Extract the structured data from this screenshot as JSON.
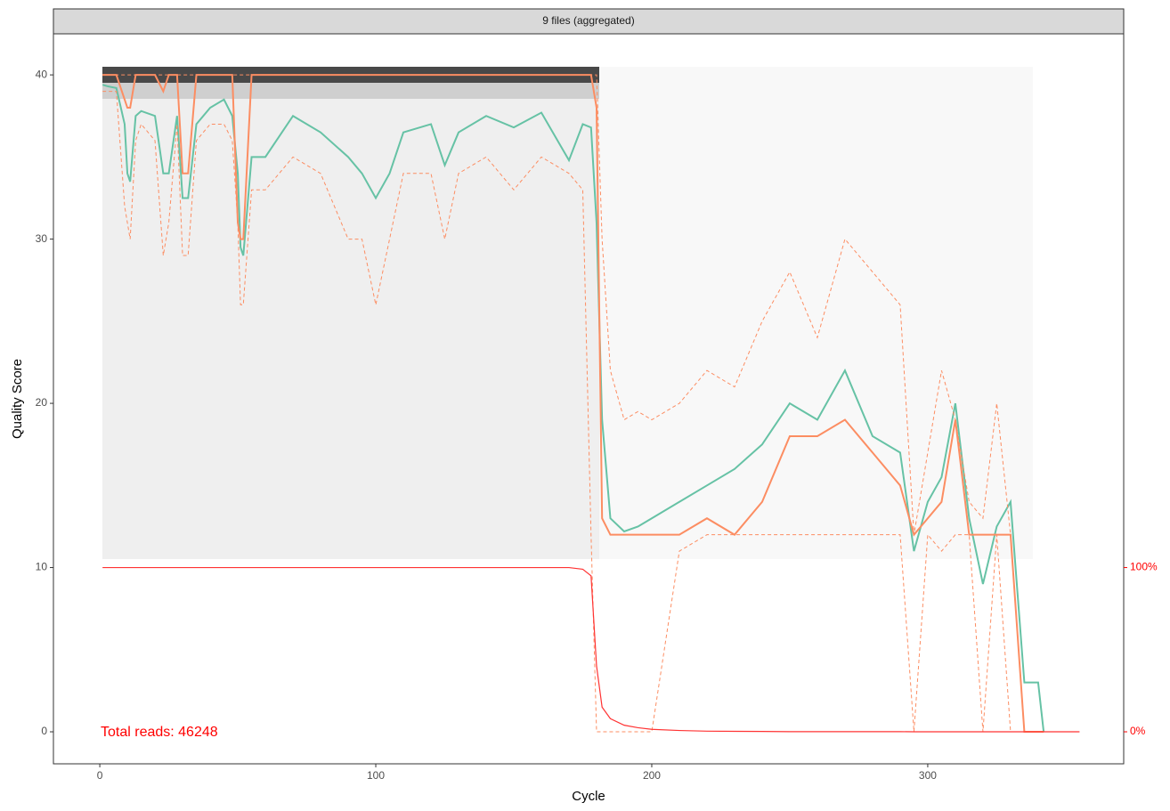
{
  "chart_data": {
    "type": "line",
    "strip": "9 files (aggregated)",
    "xlabel": "Cycle",
    "ylabel": "Quality Score",
    "annotation": "Total reads: 46248",
    "x": [
      1,
      3,
      6,
      9,
      10,
      11,
      13,
      15,
      20,
      23,
      25,
      28,
      30,
      32,
      35,
      40,
      45,
      48,
      50,
      51,
      52,
      55,
      60,
      70,
      80,
      90,
      95,
      100,
      105,
      110,
      120,
      125,
      130,
      140,
      150,
      160,
      170,
      175,
      178,
      180,
      182,
      185,
      190,
      195,
      200,
      210,
      220,
      230,
      240,
      250,
      260,
      270,
      280,
      290,
      295,
      300,
      305,
      310,
      315,
      320,
      325,
      330,
      335,
      340,
      342,
      355
    ],
    "series": [
      {
        "color": "#66c2a5",
        "dash": false,
        "values": [
          39.4,
          39.3,
          39.2,
          37,
          34,
          33.5,
          37.5,
          37.8,
          37.5,
          34,
          34,
          37.5,
          32.5,
          32.5,
          37,
          38,
          38.5,
          37.5,
          34,
          29.5,
          29,
          35,
          35,
          37.5,
          36.5,
          35,
          34,
          32.5,
          34,
          36.5,
          37,
          34.5,
          36.5,
          37.5,
          36.8,
          37.7,
          34.8,
          37,
          36.8,
          31,
          19,
          13,
          12.2,
          12.5,
          13,
          14,
          15,
          16,
          17.5,
          20,
          19,
          22,
          18,
          17,
          11,
          14,
          15.5,
          20,
          13,
          9,
          12.5,
          14,
          3,
          3,
          0,
          null
        ]
      },
      {
        "color": "#fc8d62",
        "dash": false,
        "values": [
          40,
          40,
          40,
          38.5,
          38,
          38,
          40,
          40,
          40,
          39,
          40,
          40,
          34,
          34,
          40,
          40,
          40,
          40,
          31,
          30,
          30,
          40,
          40,
          40,
          40,
          40,
          40,
          40,
          40,
          40,
          40,
          40,
          40,
          40,
          40,
          40,
          40,
          40,
          40,
          38,
          13,
          12,
          12,
          12,
          12,
          12,
          13,
          12,
          14,
          18,
          18,
          19,
          17,
          15,
          12,
          13,
          14,
          19,
          12,
          12,
          12,
          12,
          0,
          0,
          0,
          null
        ]
      },
      {
        "color": "#fc8d62",
        "dash": true,
        "values": [
          39,
          39,
          39,
          32,
          31,
          30,
          36,
          37,
          36,
          29,
          31,
          37,
          29,
          29,
          36,
          37,
          37,
          36,
          31,
          26,
          26,
          33,
          33,
          35,
          34,
          30,
          30,
          26,
          30,
          34,
          34,
          30,
          34,
          35,
          33,
          35,
          34,
          33,
          12,
          0,
          0,
          0,
          0,
          0,
          0,
          11,
          12,
          12,
          12,
          12,
          12,
          12,
          12,
          12,
          0,
          12,
          11,
          12,
          12,
          0,
          12,
          0,
          0,
          0,
          0,
          null
        ]
      },
      {
        "color": "#fc8d62",
        "dash": true,
        "values": [
          40,
          40,
          40,
          40,
          40,
          40,
          40,
          40,
          40,
          40,
          40,
          40,
          40,
          40,
          40,
          40,
          40,
          40,
          40,
          40,
          40,
          40,
          40,
          40,
          40,
          40,
          40,
          40,
          40,
          40,
          40,
          40,
          40,
          40,
          40,
          40,
          40,
          40,
          40,
          40,
          30,
          22,
          19,
          19.5,
          19,
          20,
          22,
          21,
          25,
          28,
          24,
          30,
          28,
          26,
          12,
          17,
          22,
          19,
          14,
          13,
          20,
          12,
          0,
          0,
          0,
          null
        ]
      },
      {
        "color": "#ff3333",
        "dash": false,
        "axis": "y2",
        "values": [
          100,
          100,
          100,
          100,
          100,
          100,
          100,
          100,
          100,
          100,
          100,
          100,
          100,
          100,
          100,
          100,
          100,
          100,
          100,
          100,
          100,
          100,
          100,
          100,
          100,
          100,
          100,
          100,
          100,
          100,
          100,
          100,
          100,
          100,
          100,
          100,
          100,
          99,
          95,
          40,
          15,
          8,
          4,
          2.5,
          1.5,
          0.8,
          0.4,
          0.3,
          0.2,
          0.1,
          0.1,
          0.1,
          0.1,
          0.1,
          0,
          0,
          0,
          0,
          0,
          0,
          0,
          0,
          0,
          0,
          0,
          0
        ]
      }
    ],
    "xlim": [
      -16.8,
      371
    ],
    "xticks": [
      0,
      100,
      200,
      300
    ],
    "ylim": [
      -1.95,
      42.5
    ],
    "yticks": [
      0,
      10,
      20,
      30,
      40
    ],
    "y2lim": [
      -19.5,
      425
    ],
    "y2ticks": [
      {
        "value": 0,
        "label": "0%"
      },
      {
        "value": 100,
        "label": "100%"
      }
    ],
    "y2color": "#ff0000",
    "grid": false
  }
}
